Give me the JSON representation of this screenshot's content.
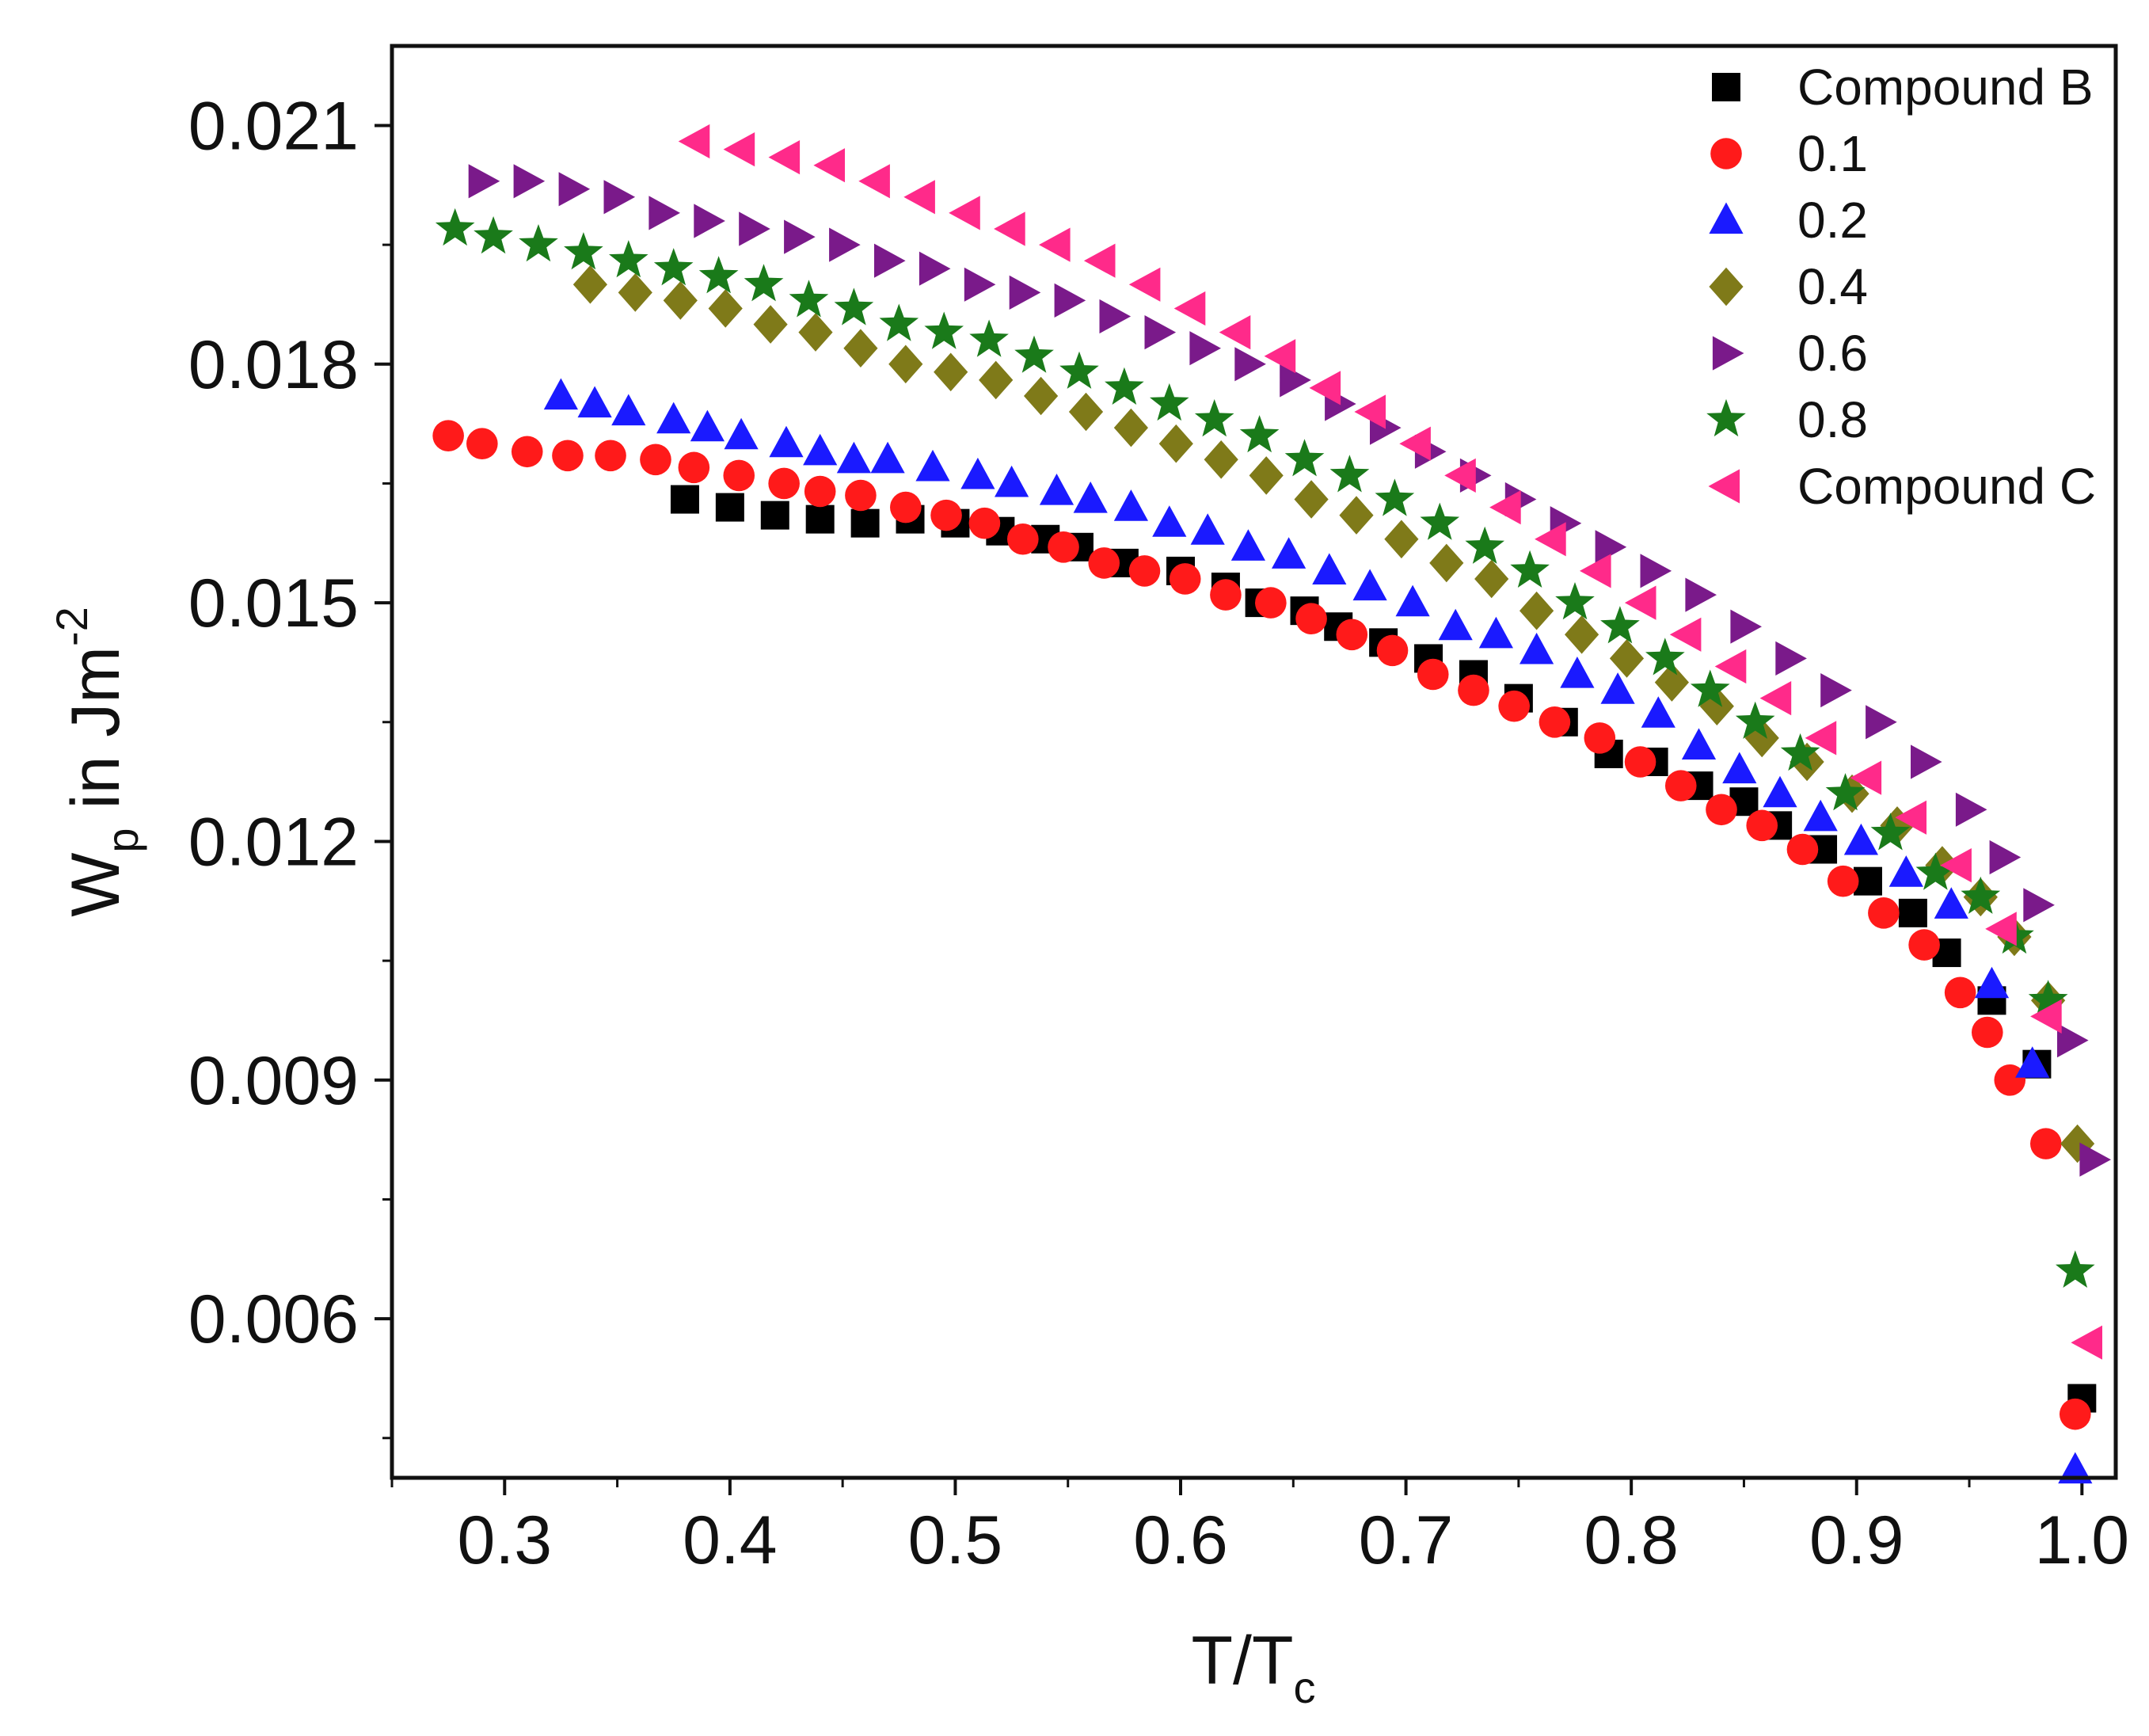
{
  "chart_data": {
    "type": "scatter",
    "title": "",
    "xlabel": {
      "main": "T/T",
      "sub": "c"
    },
    "ylabel": {
      "main": "W",
      "sub": "p",
      "mid": " in Jm",
      "sup": "-2"
    },
    "xlim": [
      0.25,
      1.015
    ],
    "ylim": [
      0.004,
      0.022
    ],
    "x_ticks": [
      "0.3",
      "0.4",
      "0.5",
      "0.6",
      "0.7",
      "0.8",
      "0.9",
      "1.0"
    ],
    "y_ticks": [
      "0.006",
      "0.009",
      "0.012",
      "0.015",
      "0.018",
      "0.021"
    ],
    "legend_position": "top-right",
    "series": [
      {
        "name": "Compound B",
        "marker": "square",
        "color": "#000000",
        "x": [
          0.38,
          0.4,
          0.42,
          0.44,
          0.46,
          0.48,
          0.5,
          0.52,
          0.54,
          0.555,
          0.575,
          0.6,
          0.62,
          0.635,
          0.655,
          0.67,
          0.69,
          0.71,
          0.73,
          0.75,
          0.77,
          0.79,
          0.81,
          0.83,
          0.85,
          0.865,
          0.885,
          0.905,
          0.925,
          0.94,
          0.96,
          0.98,
          1.0
        ],
        "y": [
          0.0163,
          0.0162,
          0.0161,
          0.01605,
          0.016,
          0.01605,
          0.016,
          0.0159,
          0.0158,
          0.0157,
          0.0155,
          0.0154,
          0.0152,
          0.015,
          0.0149,
          0.0147,
          0.0145,
          0.0143,
          0.0141,
          0.0138,
          0.0135,
          0.0131,
          0.013,
          0.0127,
          0.0125,
          0.0122,
          0.0119,
          0.0115,
          0.0111,
          0.0106,
          0.01,
          0.0092,
          0.005
        ]
      },
      {
        "name": "0.1",
        "marker": "circle",
        "color": "#ff1a1a",
        "x": [
          0.275,
          0.29,
          0.31,
          0.328,
          0.347,
          0.367,
          0.384,
          0.404,
          0.424,
          0.44,
          0.458,
          0.478,
          0.496,
          0.513,
          0.53,
          0.548,
          0.566,
          0.584,
          0.602,
          0.62,
          0.64,
          0.658,
          0.676,
          0.694,
          0.712,
          0.73,
          0.748,
          0.766,
          0.786,
          0.804,
          0.822,
          0.84,
          0.858,
          0.876,
          0.894,
          0.912,
          0.93,
          0.946,
          0.958,
          0.968,
          0.984,
          0.997
        ],
        "y": [
          0.0171,
          0.017,
          0.0169,
          0.01685,
          0.01685,
          0.0168,
          0.0167,
          0.0166,
          0.0165,
          0.0164,
          0.01635,
          0.0162,
          0.0161,
          0.016,
          0.0158,
          0.0157,
          0.0155,
          0.0154,
          0.0153,
          0.0151,
          0.015,
          0.0148,
          0.0146,
          0.0144,
          0.0141,
          0.0139,
          0.0137,
          0.0135,
          0.0133,
          0.013,
          0.0127,
          0.0124,
          0.0122,
          0.0119,
          0.0115,
          0.0111,
          0.0107,
          0.0101,
          0.0096,
          0.009,
          0.0082,
          0.0048
        ]
      },
      {
        "name": "0.2",
        "marker": "triangle-up",
        "color": "#1a1aff",
        "x": [
          0.325,
          0.34,
          0.355,
          0.375,
          0.39,
          0.405,
          0.425,
          0.44,
          0.455,
          0.47,
          0.49,
          0.51,
          0.525,
          0.545,
          0.56,
          0.578,
          0.595,
          0.612,
          0.63,
          0.648,
          0.666,
          0.684,
          0.703,
          0.722,
          0.74,
          0.758,
          0.776,
          0.794,
          0.812,
          0.83,
          0.848,
          0.866,
          0.884,
          0.902,
          0.922,
          0.942,
          0.96,
          0.978,
          0.997
        ],
        "y": [
          0.0176,
          0.0175,
          0.0174,
          0.0173,
          0.0172,
          0.0171,
          0.017,
          0.0169,
          0.0168,
          0.0168,
          0.0167,
          0.0166,
          0.0165,
          0.0164,
          0.0163,
          0.0162,
          0.016,
          0.0159,
          0.0157,
          0.0156,
          0.0154,
          0.0152,
          0.015,
          0.0147,
          0.0146,
          0.0144,
          0.0141,
          0.0139,
          0.0136,
          0.0132,
          0.0129,
          0.0126,
          0.0123,
          0.012,
          0.0116,
          0.0112,
          0.0102,
          0.0092,
          0.0041
        ]
      },
      {
        "name": "0.4",
        "marker": "diamond",
        "color": "#7f7a19",
        "x": [
          0.338,
          0.358,
          0.378,
          0.398,
          0.418,
          0.438,
          0.458,
          0.478,
          0.498,
          0.518,
          0.538,
          0.558,
          0.578,
          0.598,
          0.618,
          0.638,
          0.658,
          0.678,
          0.698,
          0.718,
          0.738,
          0.758,
          0.778,
          0.798,
          0.818,
          0.838,
          0.858,
          0.878,
          0.898,
          0.918,
          0.938,
          0.955,
          0.97,
          0.985,
          0.998
        ],
        "y": [
          0.019,
          0.0189,
          0.0188,
          0.0187,
          0.0185,
          0.0184,
          0.0182,
          0.018,
          0.0179,
          0.0178,
          0.0176,
          0.0174,
          0.0172,
          0.017,
          0.0168,
          0.0166,
          0.0163,
          0.0161,
          0.0158,
          0.0155,
          0.0153,
          0.0149,
          0.0146,
          0.0143,
          0.014,
          0.0137,
          0.0133,
          0.013,
          0.0126,
          0.0122,
          0.0117,
          0.0113,
          0.0108,
          0.01,
          0.0082
        ]
      },
      {
        "name": "0.6",
        "marker": "triangle-right",
        "color": "#7a1a8a",
        "x": [
          0.29,
          0.31,
          0.33,
          0.35,
          0.37,
          0.39,
          0.41,
          0.43,
          0.45,
          0.47,
          0.49,
          0.51,
          0.53,
          0.55,
          0.57,
          0.59,
          0.61,
          0.63,
          0.65,
          0.67,
          0.69,
          0.71,
          0.73,
          0.75,
          0.77,
          0.79,
          0.81,
          0.83,
          0.85,
          0.87,
          0.89,
          0.91,
          0.93,
          0.95,
          0.965,
          0.98,
          0.995,
          1.005
        ],
        "y": [
          0.0203,
          0.0203,
          0.0202,
          0.0201,
          0.0199,
          0.0198,
          0.0197,
          0.0196,
          0.0195,
          0.0193,
          0.0192,
          0.019,
          0.0189,
          0.0188,
          0.0186,
          0.0184,
          0.0182,
          0.018,
          0.0178,
          0.0175,
          0.0172,
          0.0169,
          0.0166,
          0.0163,
          0.016,
          0.0157,
          0.0154,
          0.0151,
          0.0147,
          0.0143,
          0.0139,
          0.0135,
          0.013,
          0.0124,
          0.0118,
          0.0112,
          0.0095,
          0.008
        ]
      },
      {
        "name": "0.8",
        "marker": "star",
        "color": "#1a7a1a",
        "x": [
          0.278,
          0.295,
          0.315,
          0.335,
          0.355,
          0.375,
          0.395,
          0.415,
          0.435,
          0.455,
          0.475,
          0.495,
          0.515,
          0.535,
          0.555,
          0.575,
          0.595,
          0.615,
          0.635,
          0.655,
          0.675,
          0.695,
          0.715,
          0.735,
          0.755,
          0.775,
          0.795,
          0.815,
          0.835,
          0.855,
          0.875,
          0.895,
          0.915,
          0.935,
          0.955,
          0.97,
          0.985,
          0.997
        ],
        "y": [
          0.0197,
          0.0196,
          0.0195,
          0.0194,
          0.0193,
          0.0192,
          0.0191,
          0.019,
          0.0188,
          0.0187,
          0.0185,
          0.0184,
          0.0183,
          0.0181,
          0.0179,
          0.0177,
          0.0175,
          0.0173,
          0.0171,
          0.0168,
          0.0166,
          0.0163,
          0.016,
          0.0157,
          0.0154,
          0.015,
          0.0147,
          0.0143,
          0.0139,
          0.0135,
          0.0131,
          0.0126,
          0.0121,
          0.0116,
          0.0113,
          0.0108,
          0.01,
          0.0066
        ]
      },
      {
        "name": "Compound C",
        "marker": "triangle-left",
        "color": "#ff2a8a",
        "x": [
          0.385,
          0.405,
          0.425,
          0.445,
          0.465,
          0.485,
          0.505,
          0.525,
          0.545,
          0.565,
          0.585,
          0.605,
          0.625,
          0.645,
          0.665,
          0.685,
          0.705,
          0.725,
          0.745,
          0.765,
          0.785,
          0.805,
          0.825,
          0.845,
          0.865,
          0.885,
          0.905,
          0.925,
          0.945,
          0.965,
          0.985,
          1.003
        ],
        "y": [
          0.0208,
          0.0207,
          0.0206,
          0.0205,
          0.0203,
          0.0201,
          0.0199,
          0.0197,
          0.0195,
          0.0193,
          0.019,
          0.0187,
          0.0184,
          0.0181,
          0.0177,
          0.0174,
          0.017,
          0.0166,
          0.0162,
          0.0158,
          0.0154,
          0.015,
          0.0146,
          0.0142,
          0.0138,
          0.0133,
          0.0128,
          0.0123,
          0.0117,
          0.0109,
          0.0098,
          0.0057
        ]
      }
    ]
  }
}
